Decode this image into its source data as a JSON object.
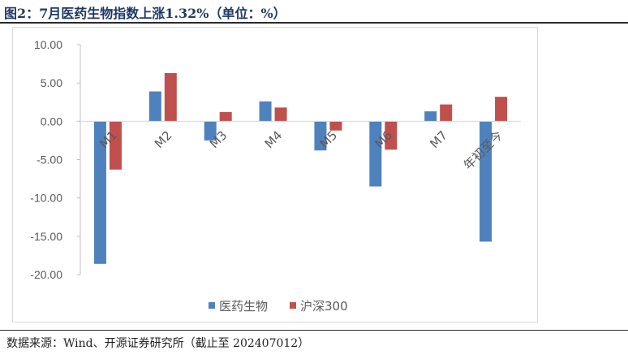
{
  "figure": {
    "title": "图2：7月医药生物指数上涨1.32%（单位：%）",
    "source": "数据来源：Wind、开源证券研究所（截止至 202407012）"
  },
  "chart_data": {
    "type": "bar",
    "categories": [
      "M1",
      "M2",
      "M3",
      "M4",
      "M5",
      "M6",
      "M7",
      "年初至今"
    ],
    "series": [
      {
        "name": "医药生物",
        "color": "#4f81bd",
        "values": [
          -18.6,
          3.9,
          -2.5,
          2.6,
          -3.8,
          -8.5,
          1.3,
          -15.7
        ]
      },
      {
        "name": "沪深300",
        "color": "#c0504d",
        "values": [
          -6.3,
          6.3,
          1.2,
          1.8,
          -1.2,
          -3.7,
          2.2,
          3.2
        ]
      }
    ],
    "yticks": [
      "10.00",
      "5.00",
      "0.00",
      "-5.00",
      "-10.00",
      "-15.00",
      "-20.00"
    ],
    "ylim": [
      -20,
      10
    ],
    "grid": false,
    "legend": "bottom"
  }
}
